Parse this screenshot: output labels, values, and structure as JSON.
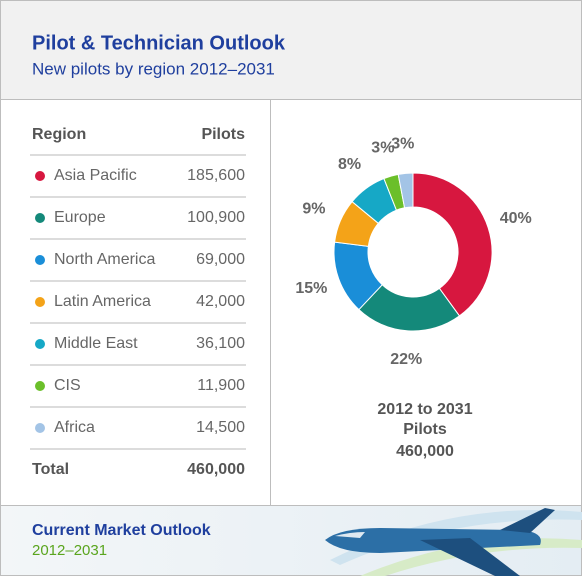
{
  "header": {
    "title": "Pilot & Technician Outlook",
    "subtitle": "New pilots by region 2012–2031"
  },
  "table": {
    "columns": [
      "Region",
      "Pilots"
    ],
    "rows": [
      [
        "Asia Pacific",
        "185,600"
      ],
      [
        "Europe",
        "100,900"
      ],
      [
        "North America",
        "69,000"
      ],
      [
        "Latin America",
        "42,000"
      ],
      [
        "Middle East",
        "36,100"
      ],
      [
        "CIS",
        "11,900"
      ],
      [
        "Africa",
        "14,500"
      ]
    ],
    "total": [
      "Total",
      "460,000"
    ]
  },
  "chart_data": {
    "type": "donut",
    "values": [
      40,
      22,
      15,
      9,
      8,
      3,
      3
    ],
    "value_labels": [
      "40%",
      "22%",
      "15%",
      "9%",
      "8%",
      "3%",
      "3%"
    ],
    "colors": [
      "#d7173f",
      "#14897a",
      "#1a8ed8",
      "#f4a318",
      "#16a8c6",
      "#6bbf2a",
      "#a3c4e6"
    ],
    "center_text": [
      "2012 to 2031",
      "Pilots",
      "460,000"
    ]
  },
  "footer": {
    "title": "Current Market Outlook",
    "subtitle": "2012–2031"
  }
}
